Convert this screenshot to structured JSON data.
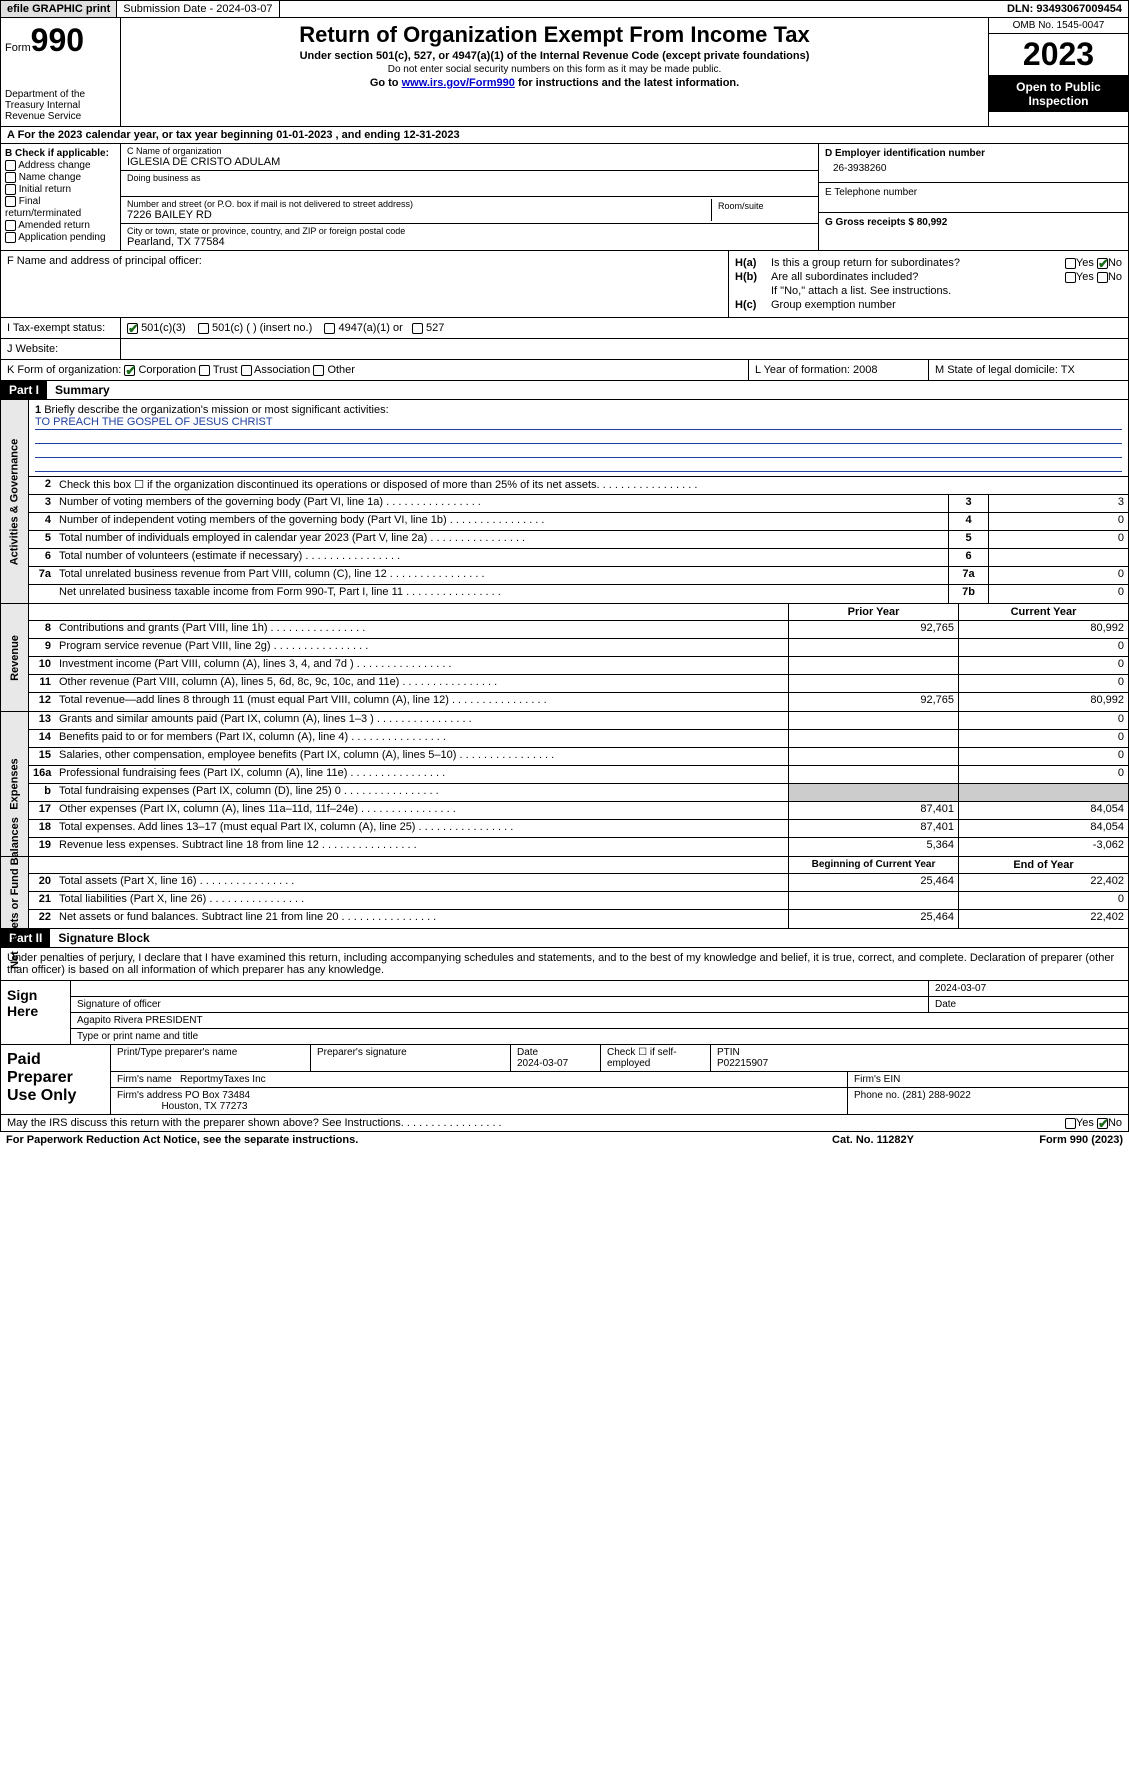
{
  "topbar": {
    "efile": "efile GRAPHIC print",
    "submission": "Submission Date - 2024-03-07",
    "dln": "DLN: 93493067009454"
  },
  "header": {
    "form_label": "Form",
    "form_num": "990",
    "dept": "Department of the Treasury Internal Revenue Service",
    "title": "Return of Organization Exempt From Income Tax",
    "subtitle": "Under section 501(c), 527, or 4947(a)(1) of the Internal Revenue Code (except private foundations)",
    "note": "Do not enter social security numbers on this form as it may be made public.",
    "goto_pre": "Go to ",
    "goto_link": "www.irs.gov/Form990",
    "goto_post": " for instructions and the latest information.",
    "omb": "OMB No. 1545-0047",
    "year": "2023",
    "open": "Open to Public Inspection"
  },
  "row_a": "A For the 2023 calendar year, or tax year beginning 01-01-2023   , and ending 12-31-2023",
  "col_b": {
    "title": "B Check if applicable:",
    "items": [
      "Address change",
      "Name change",
      "Initial return",
      "Final return/terminated",
      "Amended return",
      "Application pending"
    ]
  },
  "col_c": {
    "name_label": "C Name of organization",
    "name": "IGLESIA DE CRISTO ADULAM",
    "dba": "Doing business as",
    "addr_label": "Number and street (or P.O. box if mail is not delivered to street address)",
    "addr": "7226 BAILEY RD",
    "room_label": "Room/suite",
    "city_label": "City or town, state or province, country, and ZIP or foreign postal code",
    "city": "Pearland, TX  77584"
  },
  "col_de": {
    "d_label": "D Employer identification number",
    "d_val": "26-3938260",
    "e_label": "E Telephone number",
    "g_label": "G Gross receipts $ 80,992"
  },
  "col_f": "F  Name and address of principal officer:",
  "col_h": {
    "ha": "H(a)",
    "ha_txt": "Is this a group return for subordinates?",
    "hb": "H(b)",
    "hb_txt": "Are all subordinates included?",
    "hb_note": "If \"No,\" attach a list. See instructions.",
    "hc": "H(c)",
    "hc_txt": "Group exemption number",
    "yes": "Yes",
    "no": "No"
  },
  "row_i": {
    "label": "I  Tax-exempt status:",
    "opts": [
      "501(c)(3)",
      "501(c) (  ) (insert no.)",
      "4947(a)(1) or",
      "527"
    ]
  },
  "row_j": "J  Website:",
  "row_k": {
    "k": "K Form of organization:",
    "kopts": [
      "Corporation",
      "Trust",
      "Association",
      "Other"
    ],
    "l": "L Year of formation: 2008",
    "m": "M State of legal domicile: TX"
  },
  "part1": {
    "header": "Part I",
    "title": "Summary"
  },
  "mission": {
    "label": "Briefly describe the organization's mission or most significant activities:",
    "text": "TO PREACH THE GOSPEL OF JESUS CHRIST"
  },
  "gov_lines": [
    {
      "n": "2",
      "t": "Check this box ☐ if the organization discontinued its operations or disposed of more than 25% of its net assets."
    },
    {
      "n": "3",
      "t": "Number of voting members of the governing body (Part VI, line 1a)",
      "box": "3",
      "v": "3"
    },
    {
      "n": "4",
      "t": "Number of independent voting members of the governing body (Part VI, line 1b)",
      "box": "4",
      "v": "0"
    },
    {
      "n": "5",
      "t": "Total number of individuals employed in calendar year 2023 (Part V, line 2a)",
      "box": "5",
      "v": "0"
    },
    {
      "n": "6",
      "t": "Total number of volunteers (estimate if necessary)",
      "box": "6",
      "v": ""
    },
    {
      "n": "7a",
      "t": "Total unrelated business revenue from Part VIII, column (C), line 12",
      "box": "7a",
      "v": "0"
    },
    {
      "n": "",
      "t": "Net unrelated business taxable income from Form 990-T, Part I, line 11",
      "box": "7b",
      "v": "0"
    }
  ],
  "rev_head": {
    "c2": "Prior Year",
    "c3": "Current Year"
  },
  "rev_lines": [
    {
      "n": "8",
      "t": "Contributions and grants (Part VIII, line 1h)",
      "v1": "92,765",
      "v2": "80,992"
    },
    {
      "n": "9",
      "t": "Program service revenue (Part VIII, line 2g)",
      "v1": "",
      "v2": "0"
    },
    {
      "n": "10",
      "t": "Investment income (Part VIII, column (A), lines 3, 4, and 7d )",
      "v1": "",
      "v2": "0"
    },
    {
      "n": "11",
      "t": "Other revenue (Part VIII, column (A), lines 5, 6d, 8c, 9c, 10c, and 11e)",
      "v1": "",
      "v2": "0"
    },
    {
      "n": "12",
      "t": "Total revenue—add lines 8 through 11 (must equal Part VIII, column (A), line 12)",
      "v1": "92,765",
      "v2": "80,992"
    }
  ],
  "exp_lines": [
    {
      "n": "13",
      "t": "Grants and similar amounts paid (Part IX, column (A), lines 1–3 )",
      "v1": "",
      "v2": "0"
    },
    {
      "n": "14",
      "t": "Benefits paid to or for members (Part IX, column (A), line 4)",
      "v1": "",
      "v2": "0"
    },
    {
      "n": "15",
      "t": "Salaries, other compensation, employee benefits (Part IX, column (A), lines 5–10)",
      "v1": "",
      "v2": "0"
    },
    {
      "n": "16a",
      "t": "Professional fundraising fees (Part IX, column (A), line 11e)",
      "v1": "",
      "v2": "0"
    },
    {
      "n": "b",
      "t": "Total fundraising expenses (Part IX, column (D), line 25) 0",
      "v1": "gray",
      "v2": "gray"
    },
    {
      "n": "17",
      "t": "Other expenses (Part IX, column (A), lines 11a–11d, 11f–24e)",
      "v1": "87,401",
      "v2": "84,054"
    },
    {
      "n": "18",
      "t": "Total expenses. Add lines 13–17 (must equal Part IX, column (A), line 25)",
      "v1": "87,401",
      "v2": "84,054"
    },
    {
      "n": "19",
      "t": "Revenue less expenses. Subtract line 18 from line 12",
      "v1": "5,364",
      "v2": "-3,062"
    }
  ],
  "na_head": {
    "c2": "Beginning of Current Year",
    "c3": "End of Year"
  },
  "na_lines": [
    {
      "n": "20",
      "t": "Total assets (Part X, line 16)",
      "v1": "25,464",
      "v2": "22,402"
    },
    {
      "n": "21",
      "t": "Total liabilities (Part X, line 26)",
      "v1": "",
      "v2": "0"
    },
    {
      "n": "22",
      "t": "Net assets or fund balances. Subtract line 21 from line 20",
      "v1": "25,464",
      "v2": "22,402"
    }
  ],
  "vtabs": {
    "gov": "Activities & Governance",
    "rev": "Revenue",
    "exp": "Expenses",
    "na": "Net Assets or Fund Balances"
  },
  "part2": {
    "header": "Part II",
    "title": "Signature Block"
  },
  "sig": {
    "decl": "Under penalties of perjury, I declare that I have examined this return, including accompanying schedules and statements, and to the best of my knowledge and belief, it is true, correct, and complete. Declaration of preparer (other than officer) is based on all information of which preparer has any knowledge.",
    "sign_here": "Sign Here",
    "date": "2024-03-07",
    "sig_officer": "Signature of officer",
    "officer": "Agapito Rivera PRESIDENT",
    "type_name": "Type or print name and title",
    "date_label": "Date"
  },
  "prep": {
    "title": "Paid Preparer Use Only",
    "name_label": "Print/Type preparer's name",
    "sig_label": "Preparer's signature",
    "date_label": "Date",
    "date": "2024-03-07",
    "self_emp": "Check ☐ if self-employed",
    "ptin_label": "PTIN",
    "ptin": "P02215907",
    "firm_name_label": "Firm's name",
    "firm_name": "ReportmyTaxes Inc",
    "firm_ein_label": "Firm's EIN",
    "firm_addr_label": "Firm's address",
    "firm_addr1": "PO Box 73484",
    "firm_addr2": "Houston, TX  77273",
    "phone_label": "Phone no.",
    "phone": "(281) 288-9022"
  },
  "discuss": "May the IRS discuss this return with the preparer shown above? See Instructions.",
  "footer": {
    "left": "For Paperwork Reduction Act Notice, see the separate instructions.",
    "mid": "Cat. No. 11282Y",
    "right": "Form 990 (2023)"
  }
}
